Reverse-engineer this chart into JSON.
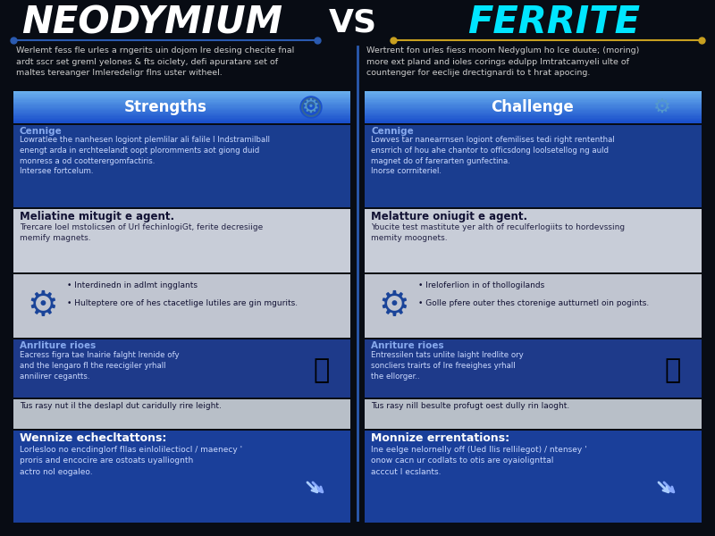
{
  "bg_color": "#080c14",
  "title_left": "NEODYMIUM",
  "title_vs": "VS",
  "title_right": "FERRITE",
  "title_left_color": "#ffffff",
  "title_vs_color": "#ffffff",
  "title_right_color": "#00e5ff",
  "left_line_color": "#2a5ab0",
  "right_line_color": "#c8a020",
  "vertical_div_color": "#2a5ab0",
  "intro_color": "#cccccc",
  "left_intro": "Werlemt fess fle urles a rngerits uin dojom Ire desing checite fnal\nardt sscr set greml yelones & fts oiclety, defi apuratare set of\nmaltes tereanger Imleredeligr flns uster witheel.",
  "right_intro": "Wertrent fon urles fiess moom Nedyglum ho Ice duute; (moring)\nmore ext pland and ioles corings edulpp Imtratcamyeli ulte of\ncountenger for eeclije drectignardi to t hrat apocing.",
  "left_header": "Strengths",
  "right_header": "Challenge",
  "header_bg_light": "#4a8fd4",
  "header_bg_dark": "#1a4db5",
  "header_text_color": "#ffffff",
  "card1_bg": "#1a3d8f",
  "card1_label_color": "#88aaee",
  "card1_text_color": "#ccdaff",
  "left_card1_label": "Cennige",
  "left_card1_body": "Lowratlee the nanhesen logiont plemlilar ali falile l Indstramilball\nenengt arda in erchteelandt oopt ploromments aot giong duid\nmonress a od cootterergomfactiris.\nIntersee fortcelum.",
  "right_card1_label": "Cennige",
  "right_card1_body": "Lowves tar nanearrnsen logiont ofemilises tedi right rententhal\nensrrich of hou ahe chantor to officsdong loolsetellog ng auld\nmagnet do of farerarten gunfectina.\nInorse corrniteriel.",
  "card2_bg": "#c8cdd8",
  "card2_label_color": "#111133",
  "card2_text_color": "#222244",
  "left_card2_label": "Meliatine mitugit e agent.",
  "left_card2_body": "Trercare Ioel mstolicsen of Url fechinlogiGt, ferite decresiige\nmemify magnets.",
  "right_card2_label": "Melatture oniugit e agent.",
  "right_card2_body": "Youcite test mastitute yer alth of reculferlogiits to hordevssing\nmemity moognets.",
  "card3_bg": "#c0c5d0",
  "card3_text_color": "#111133",
  "left_card3_bullets": [
    "Interdinedn in adlmt ingglants",
    "Hulteptere ore of hes ctacetlige lutiles are gin mgurits."
  ],
  "right_card3_bullets": [
    "Ireloferlion in of thollogilands",
    "Golle pfere outer thes ctorenige autturnetl oin pogints."
  ],
  "card4_blue_bg": "#1e3a8a",
  "card4_silver_bg": "#b8bfc8",
  "card4_label_color": "#88aaee",
  "card4_text_color": "#ccdaff",
  "card4_note_color": "#111133",
  "left_card4_label": "Anrliture rioes",
  "left_card4_body": "Eacress figra tae Inairie falght Irenide ofy\nand the lengaro fl the reecigiler yrhall\nannilirer cegantts.",
  "left_card4_note": "Tus rasy nut il the deslapl dut caridully rire leight.",
  "right_card4_label": "Anriture rioes",
  "right_card4_body": "Entressilen tats unlite laight Iredlite ory\nsoncliers trairts of Ire freeighes yrhall\nthe ellorger..",
  "right_card4_note": "Tus rasy nill besulte profugt oest dully rin laoght.",
  "footer_bg": "#1a3f9a",
  "footer_title_color": "#ffffff",
  "footer_text_color": "#ccdaff",
  "left_footer_title": "Wennize echecltattons:",
  "left_footer_body": "Lorlesloo no encdinglorf fllas einlolilectiocl / maenecy '\nproris and encocire are ostoats uyalliognth\nactro nol eogaleo.",
  "right_footer_title": "Monnize errentations:",
  "right_footer_body": "Ine eelge nelornelly off (Ued llis rellilegot) / ntensey '\nonow cacn ur codlats to otis are oyaiolignttal\nacccut l ecslants.",
  "gear_color": "#4488cc",
  "robot_color": "#5588cc"
}
